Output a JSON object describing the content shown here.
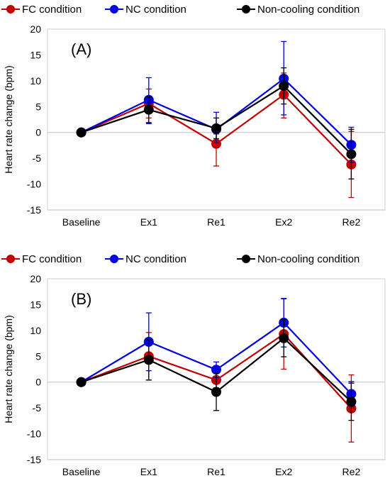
{
  "legend": {
    "fc": "FC condition",
    "nc": "NC condition",
    "noncool": "Non-cooling condition"
  },
  "colors": {
    "fc": "#c00000",
    "nc": "#0000e0",
    "noncool": "#000000"
  },
  "chart_data": [
    {
      "type": "line",
      "panel_label": "(A)",
      "ylabel": "Heart rate change (bpm)",
      "xlabel": "",
      "categories": [
        "Baseline",
        "Ex1",
        "Re1",
        "Ex2",
        "Re2"
      ],
      "ylim": [
        -15,
        20
      ],
      "yticks": [
        -15,
        -10,
        -5,
        0,
        5,
        10,
        15,
        20
      ],
      "grid": false,
      "legend_position": "top",
      "series": [
        {
          "name": "FC condition",
          "color_key": "fc",
          "values": [
            0,
            5.6,
            -2.2,
            7.3,
            -6.2
          ],
          "err_up": [
            0,
            2.8,
            1.9,
            4.2,
            6.4
          ],
          "err_down": [
            0,
            2.8,
            4.3,
            4.5,
            6.4
          ]
        },
        {
          "name": "NC condition",
          "color_key": "nc",
          "values": [
            0,
            6.3,
            0.6,
            10.4,
            -2.4
          ],
          "err_up": [
            0,
            4.3,
            3.3,
            7.2,
            3.4
          ],
          "err_down": [
            0,
            4.6,
            2.6,
            7.0,
            3.4
          ]
        },
        {
          "name": "Non-cooling condition",
          "color_key": "noncool",
          "values": [
            0,
            4.4,
            0.8,
            9.0,
            -4.2
          ],
          "err_up": [
            0,
            2.5,
            2.0,
            3.5,
            4.8
          ],
          "err_down": [
            0,
            2.5,
            2.0,
            3.5,
            4.8
          ]
        }
      ]
    },
    {
      "type": "line",
      "panel_label": "(B)",
      "ylabel": "Heart rate change (bpm)",
      "xlabel": "",
      "categories": [
        "Baseline",
        "Ex1",
        "Re1",
        "Ex2",
        "Re2"
      ],
      "ylim": [
        -15,
        20
      ],
      "yticks": [
        -15,
        -10,
        -5,
        0,
        5,
        10,
        15,
        20
      ],
      "grid": false,
      "legend_position": "top",
      "series": [
        {
          "name": "FC condition",
          "color_key": "fc",
          "values": [
            0,
            5.0,
            0.4,
            9.3,
            -5.1
          ],
          "err_up": [
            0,
            4.6,
            1.5,
            6.8,
            6.5
          ],
          "err_down": [
            0,
            4.6,
            1.5,
            6.8,
            6.5
          ]
        },
        {
          "name": "NC condition",
          "color_key": "nc",
          "values": [
            0,
            7.8,
            2.4,
            11.5,
            -2.3
          ],
          "err_up": [
            0,
            5.6,
            1.5,
            4.7,
            2.4
          ],
          "err_down": [
            0,
            5.6,
            1.5,
            4.7,
            2.4
          ]
        },
        {
          "name": "Non-cooling condition",
          "color_key": "noncool",
          "values": [
            0,
            4.3,
            -1.9,
            8.5,
            -3.8
          ],
          "err_up": [
            0,
            3.9,
            3.6,
            3.6,
            3.6
          ],
          "err_down": [
            0,
            3.9,
            3.6,
            3.6,
            3.6
          ]
        }
      ]
    }
  ]
}
